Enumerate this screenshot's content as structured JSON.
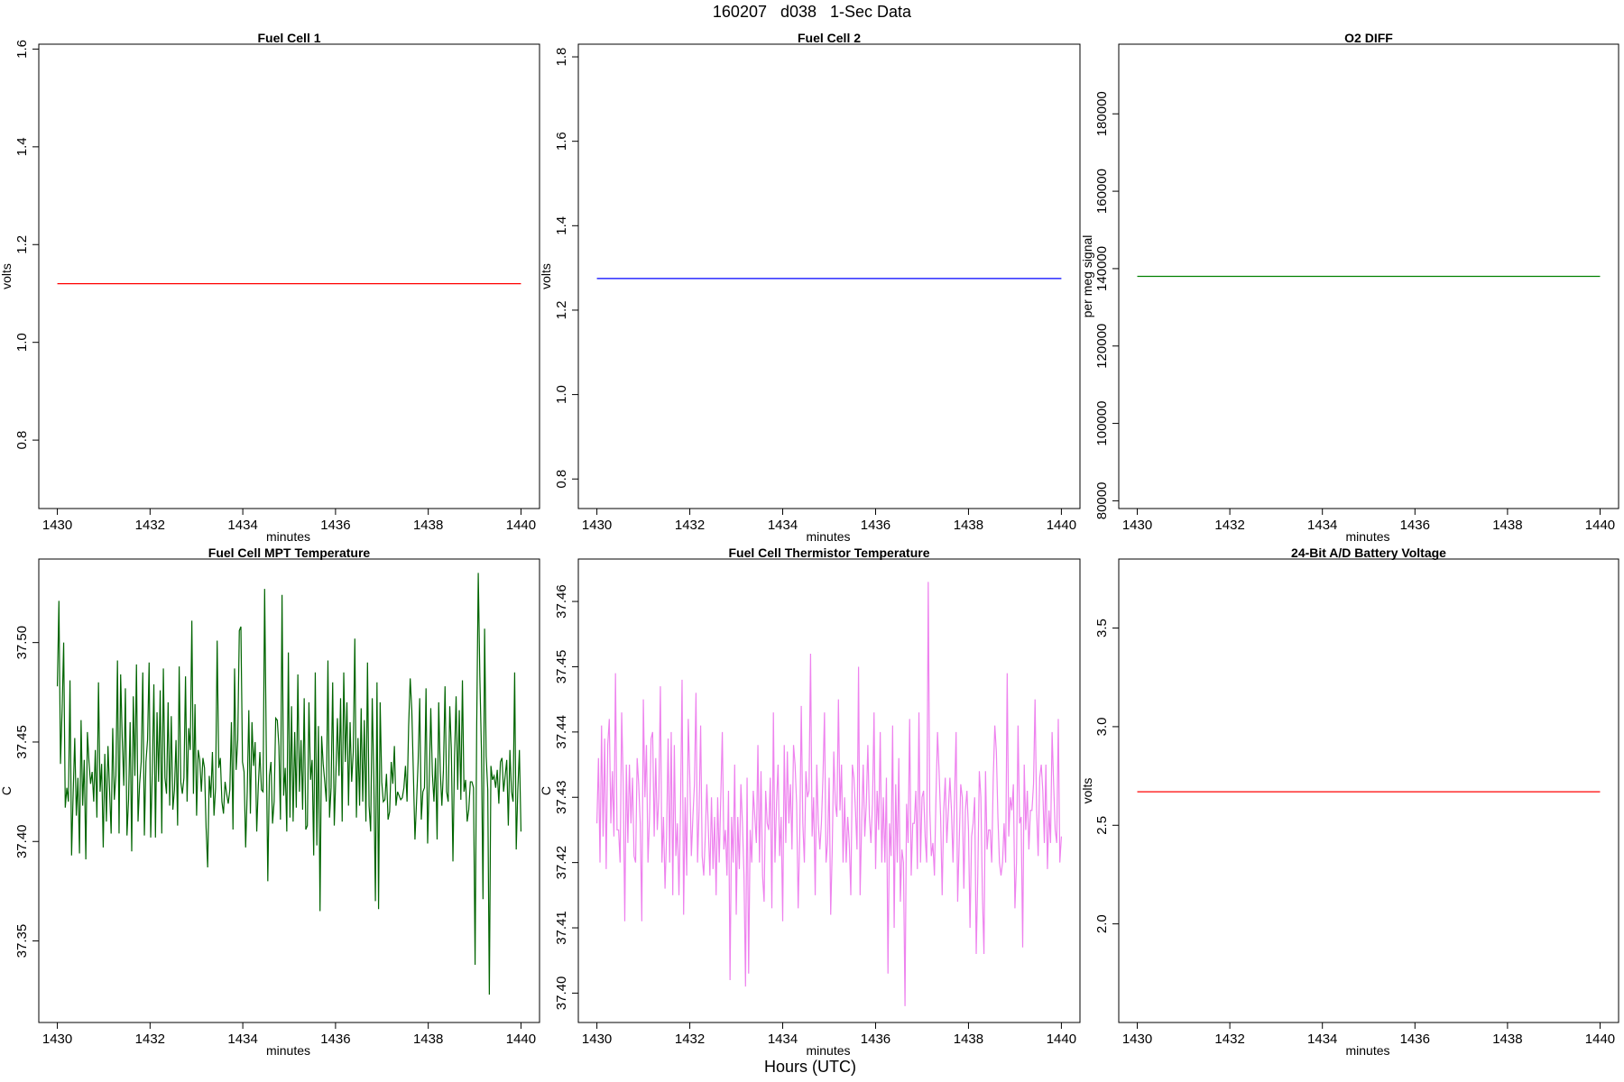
{
  "figure": {
    "title": "160207   d038   1-Sec Data",
    "outer_xlabel": "Hours (UTC)"
  },
  "chart_data": [
    {
      "type": "line",
      "title": "Fuel Cell 1",
      "xlabel": "minutes",
      "ylabel": "volts",
      "xlim": [
        1429.6,
        1440.4
      ],
      "ylim": [
        0.66,
        1.61
      ],
      "xticks": [
        1430,
        1432,
        1434,
        1436,
        1438,
        1440
      ],
      "yticks": [
        0.8,
        1.0,
        1.2,
        1.4,
        1.6
      ],
      "ytick_labels": [
        "0.8",
        "1.0",
        "1.2",
        "1.4",
        "1.6"
      ],
      "color": "#ff0000",
      "series": [
        {
          "x": [
            1430,
            1440
          ],
          "values": [
            1.12,
            1.12
          ]
        }
      ]
    },
    {
      "type": "line",
      "title": "Fuel Cell 2",
      "xlabel": "minutes",
      "ylabel": "volts",
      "xlim": [
        1429.6,
        1440.4
      ],
      "ylim": [
        0.73,
        1.83
      ],
      "xticks": [
        1430,
        1432,
        1434,
        1436,
        1438,
        1440
      ],
      "yticks": [
        0.8,
        1.0,
        1.2,
        1.4,
        1.6,
        1.8
      ],
      "ytick_labels": [
        "0.8",
        "1.0",
        "1.2",
        "1.4",
        "1.6",
        "1.8"
      ],
      "color": "#0000ff",
      "series": [
        {
          "x": [
            1430,
            1440
          ],
          "values": [
            1.275,
            1.275
          ]
        }
      ]
    },
    {
      "type": "line",
      "title": "O2 DIFF",
      "xlabel": "minutes",
      "ylabel": "per meg signal",
      "xlim": [
        1429.6,
        1440.4
      ],
      "ylim": [
        78000,
        198000
      ],
      "xticks": [
        1430,
        1432,
        1434,
        1436,
        1438,
        1440
      ],
      "yticks": [
        80000,
        100000,
        120000,
        140000,
        160000,
        180000
      ],
      "ytick_labels": [
        "80000",
        "100000",
        "120000",
        "140000",
        "160000",
        "180000"
      ],
      "color": "#008000",
      "series": [
        {
          "x": [
            1430,
            1440
          ],
          "values": [
            138000,
            138000
          ]
        }
      ]
    },
    {
      "type": "line",
      "title": "Fuel Cell MPT Temperature",
      "xlabel": "minutes",
      "ylabel": "C",
      "xlim": [
        1429.6,
        1440.4
      ],
      "ylim": [
        37.309,
        37.542
      ],
      "xticks": [
        1430,
        1432,
        1434,
        1436,
        1438,
        1440
      ],
      "yticks": [
        37.35,
        37.4,
        37.45,
        37.5
      ],
      "ytick_labels": [
        "37.35",
        "37.40",
        "37.45",
        "37.50"
      ],
      "color": "#006400",
      "series": [
        {
          "x_start": 1430,
          "x_step": 0.0333333,
          "values": [
            37.478,
            37.521,
            37.439,
            37.466,
            37.5,
            37.417,
            37.427,
            37.42,
            37.481,
            37.393,
            37.424,
            37.452,
            37.413,
            37.432,
            37.394,
            37.461,
            37.418,
            37.441,
            37.391,
            37.455,
            37.44,
            37.429,
            37.435,
            37.42,
            37.446,
            37.412,
            37.48,
            37.425,
            37.439,
            37.397,
            37.444,
            37.41,
            37.448,
            37.426,
            37.404,
            37.457,
            37.421,
            37.433,
            37.491,
            37.404,
            37.484,
            37.452,
            37.428,
            37.477,
            37.403,
            37.421,
            37.46,
            37.395,
            37.473,
            37.433,
            37.489,
            37.41,
            37.429,
            37.44,
            37.485,
            37.403,
            37.44,
            37.451,
            37.49,
            37.402,
            37.435,
            37.479,
            37.402,
            37.465,
            37.43,
            37.476,
            37.404,
            37.487,
            37.432,
            37.424,
            37.47,
            37.418,
            37.463,
            37.416,
            37.426,
            37.451,
            37.408,
            37.488,
            37.43,
            37.424,
            37.432,
            37.483,
            37.42,
            37.457,
            37.446,
            37.511,
            37.424,
            37.469,
            37.413,
            37.446,
            37.441,
            37.425,
            37.442,
            37.437,
            37.407,
            37.387,
            37.433,
            37.422,
            37.445,
            37.413,
            37.427,
            37.501,
            37.437,
            37.442,
            37.42,
            37.414,
            37.43,
            37.424,
            37.419,
            37.426,
            37.46,
            37.406,
            37.487,
            37.436,
            37.451,
            37.506,
            37.508,
            37.44,
            37.435,
            37.397,
            37.425,
            37.466,
            37.414,
            37.46,
            37.438,
            37.45,
            37.405,
            37.428,
            37.445,
            37.426,
            37.425,
            37.527,
            37.45,
            37.38,
            37.433,
            37.44,
            37.409,
            37.42,
            37.462,
            37.461,
            37.448,
            37.411,
            37.524,
            37.423,
            37.437,
            37.405,
            37.495,
            37.412,
            37.468,
            37.41,
            37.455,
            37.417,
            37.484,
            37.425,
            37.451,
            37.416,
            37.472,
            37.406,
            37.408,
            37.47,
            37.431,
            37.441,
            37.393,
            37.485,
            37.398,
            37.458,
            37.365,
            37.453,
            37.439,
            37.43,
            37.42,
            37.491,
            37.412,
            37.427,
            37.48,
            37.408,
            37.433,
            37.462,
            37.433,
            37.472,
            37.41,
            37.485,
            37.44,
            37.47,
            37.418,
            37.46,
            37.43,
            37.445,
            37.502,
            37.412,
            37.452,
            37.418,
            37.467,
            37.42,
            37.461,
            37.41,
            37.49,
            37.418,
            37.405,
            37.472,
            37.432,
            37.37,
            37.48,
            37.366,
            37.47,
            37.43,
            37.42,
            37.421,
            37.434,
            37.411,
            37.415,
            37.44,
            37.429,
            37.448,
            37.418,
            37.425,
            37.423,
            37.421,
            37.422,
            37.427,
            37.438,
            37.42,
            37.458,
            37.482,
            37.466,
            37.434,
            37.401,
            37.42,
            37.44,
            37.472,
            37.411,
            37.425,
            37.427,
            37.477,
            37.399,
            37.43,
            37.467,
            37.434,
            37.42,
            37.442,
            37.401,
            37.47,
            37.435,
            37.418,
            37.436,
            37.478,
            37.425,
            37.42,
            37.468,
            37.446,
            37.39,
            37.442,
            37.473,
            37.426,
            37.466,
            37.421,
            37.481,
            37.425,
            37.431,
            37.41,
            37.416,
            37.43,
            37.43,
            37.427,
            37.338,
            37.457,
            37.535,
            37.483,
            37.446,
            37.371,
            37.507,
            37.443,
            37.426,
            37.323,
            37.438,
            37.431,
            37.433,
            37.427,
            37.436,
            37.419,
            37.44,
            37.442,
            37.425,
            37.433,
            37.441,
            37.408,
            37.446,
            37.425,
            37.42,
            37.485,
            37.396,
            37.426,
            37.446,
            37.405
          ]
        }
      ]
    },
    {
      "type": "line",
      "title": "Fuel Cell Thermistor Temperature",
      "xlabel": "minutes",
      "ylabel": "C",
      "xlim": [
        1429.6,
        1440.4
      ],
      "ylim": [
        37.3955,
        37.4665
      ],
      "xticks": [
        1430,
        1432,
        1434,
        1436,
        1438,
        1440
      ],
      "yticks": [
        37.4,
        37.41,
        37.42,
        37.43,
        37.44,
        37.45,
        37.46
      ],
      "ytick_labels": [
        "37.40",
        "37.41",
        "37.42",
        "37.43",
        "37.44",
        "37.45",
        "37.46"
      ],
      "color": "#ee82ee",
      "series": [
        {
          "x_start": 1430,
          "x_step": 0.0333333,
          "values": [
            37.426,
            37.436,
            37.42,
            37.441,
            37.424,
            37.439,
            37.419,
            37.438,
            37.442,
            37.426,
            37.434,
            37.424,
            37.449,
            37.425,
            37.425,
            37.42,
            37.443,
            37.432,
            37.411,
            37.435,
            37.423,
            37.435,
            37.426,
            37.433,
            37.421,
            37.42,
            37.436,
            37.432,
            37.426,
            37.411,
            37.445,
            37.43,
            37.438,
            37.42,
            37.427,
            37.439,
            37.44,
            37.424,
            37.436,
            37.425,
            37.43,
            37.447,
            37.42,
            37.427,
            37.416,
            37.424,
            37.439,
            37.42,
            37.44,
            37.415,
            37.438,
            37.421,
            37.426,
            37.415,
            37.428,
            37.448,
            37.412,
            37.43,
            37.418,
            37.442,
            37.433,
            37.421,
            37.427,
            37.432,
            37.446,
            37.42,
            37.428,
            37.441,
            37.421,
            37.418,
            37.424,
            37.432,
            37.425,
            37.418,
            37.43,
            37.419,
            37.427,
            37.415,
            37.43,
            37.42,
            37.43,
            37.44,
            37.422,
            37.425,
            37.418,
            37.431,
            37.402,
            37.427,
            37.42,
            37.435,
            37.412,
            37.427,
            37.419,
            37.432,
            37.426,
            37.418,
            37.401,
            37.433,
            37.403,
            37.425,
            37.42,
            37.431,
            37.427,
            37.423,
            37.438,
            37.42,
            37.434,
            37.418,
            37.414,
            37.431,
            37.426,
            37.425,
            37.433,
            37.413,
            37.443,
            37.42,
            37.429,
            37.435,
            37.421,
            37.427,
            37.411,
            37.438,
            37.423,
            37.437,
            37.426,
            37.432,
            37.422,
            37.438,
            37.435,
            37.429,
            37.413,
            37.424,
            37.444,
            37.426,
            37.42,
            37.434,
            37.43,
            37.431,
            37.452,
            37.424,
            37.43,
            37.415,
            37.435,
            37.426,
            37.422,
            37.426,
            37.433,
            37.443,
            37.42,
            37.423,
            37.433,
            37.412,
            37.422,
            37.437,
            37.429,
            37.427,
            37.445,
            37.428,
            37.435,
            37.42,
            37.43,
            37.42,
            37.427,
            37.423,
            37.415,
            37.435,
            37.433,
            37.428,
            37.422,
            37.45,
            37.415,
            37.426,
            37.435,
            37.424,
            37.429,
            37.438,
            37.427,
            37.423,
            37.429,
            37.443,
            37.419,
            37.431,
            37.425,
            37.44,
            37.42,
            37.43,
            37.42,
            37.433,
            37.403,
            37.426,
            37.421,
            37.441,
            37.41,
            37.432,
            37.42,
            37.436,
            37.414,
            37.422,
            37.42,
            37.398,
            37.429,
            37.423,
            37.442,
            37.418,
            37.426,
            37.426,
            37.431,
            37.419,
            37.443,
            37.42,
            37.43,
            37.431,
            37.424,
            37.42,
            37.463,
            37.428,
            37.421,
            37.423,
            37.418,
            37.43,
            37.44,
            37.434,
            37.427,
            37.415,
            37.428,
            37.433,
            37.423,
            37.428,
            37.433,
            37.428,
            37.42,
            37.43,
            37.44,
            37.414,
            37.423,
            37.432,
            37.43,
            37.416,
            37.428,
            37.431,
            37.425,
            37.41,
            37.424,
            37.426,
            37.43,
            37.406,
            37.418,
            37.434,
            37.43,
            37.415,
            37.406,
            37.434,
            37.422,
            37.425,
            37.425,
            37.42,
            37.433,
            37.441,
            37.437,
            37.427,
            37.42,
            37.418,
            37.42,
            37.426,
            37.42,
            37.449,
            37.424,
            37.43,
            37.428,
            37.432,
            37.413,
            37.42,
            37.441,
            37.426,
            37.427,
            37.407,
            37.435,
            37.425,
            37.431,
            37.422,
            37.428,
            37.428,
            37.432,
            37.445,
            37.428,
            37.421,
            37.433,
            37.435,
            37.431,
            37.423,
            37.435,
            37.419,
            37.428,
            37.423,
            37.44,
            37.432,
            37.425,
            37.423,
            37.442,
            37.42,
            37.424
          ]
        }
      ]
    },
    {
      "type": "line",
      "title": "24-Bit A/D Battery Voltage",
      "xlabel": "minutes",
      "ylabel": "volts",
      "xlim": [
        1429.6,
        1440.4
      ],
      "ylim": [
        1.5,
        3.85
      ],
      "xticks": [
        1430,
        1432,
        1434,
        1436,
        1438,
        1440
      ],
      "yticks": [
        2.0,
        2.5,
        3.0,
        3.5
      ],
      "ytick_labels": [
        "2.0",
        "2.5",
        "3.0",
        "3.5"
      ],
      "color": "#ff0000",
      "series": [
        {
          "x": [
            1430,
            1440
          ],
          "values": [
            2.67,
            2.67
          ]
        }
      ]
    }
  ]
}
